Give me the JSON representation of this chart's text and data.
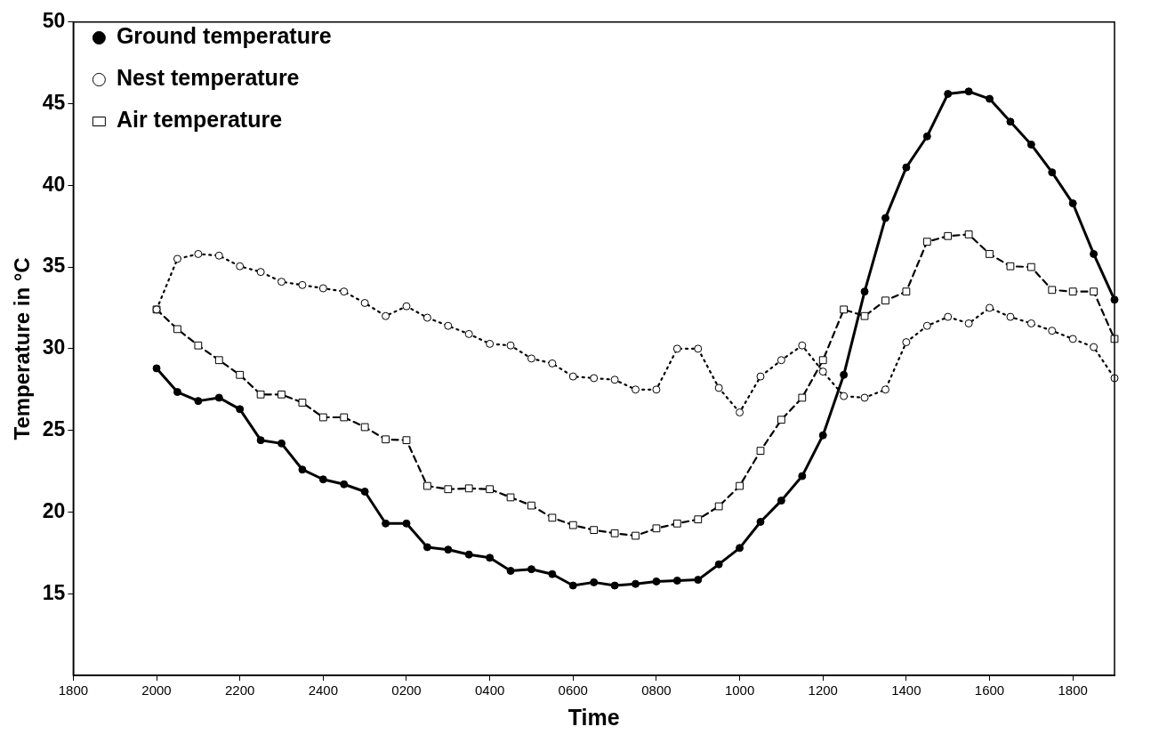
{
  "chart_data": {
    "type": "line",
    "xlabel": "Time",
    "ylabel": "Temperature in °C",
    "categories": [
      "1800",
      null,
      null,
      null,
      "2000",
      null,
      null,
      null,
      "2200",
      null,
      null,
      null,
      "2400",
      null,
      null,
      null,
      "0200",
      null,
      null,
      null,
      "0400",
      null,
      null,
      null,
      "0600",
      null,
      null,
      null,
      "0800",
      null,
      null,
      null,
      "1000",
      null,
      null,
      null,
      "1200",
      null,
      null,
      null,
      "1400",
      null,
      null,
      null,
      "1600",
      null,
      null,
      null,
      "1800",
      null,
      null
    ],
    "ylim": [
      10,
      50
    ],
    "yticks": [
      15,
      20,
      25,
      30,
      35,
      40,
      45,
      50
    ],
    "grid": false,
    "legend": "top left",
    "series": [
      {
        "name": "Ground temperature",
        "color": "#000000",
        "marker": "circle",
        "line_style": "solid",
        "values": [
          null,
          null,
          null,
          null,
          28.8,
          27.35,
          26.8,
          27.0,
          26.3,
          24.4,
          24.2,
          22.6,
          22.0,
          21.7,
          21.25,
          19.3,
          19.3,
          17.85,
          17.7,
          17.4,
          17.2,
          16.4,
          16.5,
          16.2,
          15.5,
          15.7,
          15.5,
          15.6,
          15.75,
          15.8,
          15.85,
          16.8,
          17.8,
          19.4,
          20.7,
          22.2,
          24.7,
          28.4,
          33.5,
          38.0,
          41.1,
          43.0,
          45.6,
          45.75,
          45.3,
          43.9,
          42.5,
          40.8,
          38.9,
          35.8,
          33.0
        ]
      },
      {
        "name": "Nest temperature",
        "color": "#000000",
        "marker": "circle",
        "line_style": "dotted",
        "values": [
          null,
          null,
          null,
          null,
          32.4,
          35.5,
          35.8,
          35.7,
          35.05,
          34.7,
          34.1,
          33.9,
          33.7,
          33.5,
          32.8,
          32.0,
          32.6,
          31.9,
          31.4,
          30.9,
          30.3,
          30.2,
          29.4,
          29.1,
          28.3,
          28.2,
          28.1,
          27.5,
          27.5,
          30.0,
          30.0,
          27.6,
          26.1,
          28.3,
          29.3,
          30.2,
          28.6,
          27.1,
          27.0,
          27.5,
          30.4,
          31.4,
          31.95,
          31.55,
          32.5,
          31.95,
          31.55,
          31.1,
          30.6,
          30.1,
          28.2
        ]
      },
      {
        "name": "Air temperature",
        "color": "#000000",
        "marker": "square",
        "line_style": "dashed",
        "values": [
          null,
          null,
          null,
          null,
          32.4,
          31.2,
          30.2,
          29.3,
          28.4,
          27.2,
          27.2,
          26.7,
          25.8,
          25.8,
          25.2,
          24.45,
          24.4,
          21.6,
          21.4,
          21.45,
          21.4,
          20.9,
          20.4,
          19.65,
          19.2,
          18.9,
          18.7,
          18.55,
          19.0,
          19.3,
          19.55,
          20.35,
          21.6,
          23.75,
          25.65,
          27.0,
          29.3,
          32.4,
          32.0,
          32.95,
          33.5,
          36.55,
          36.9,
          37.0,
          35.8,
          35.05,
          35.0,
          33.6,
          33.5,
          33.5,
          30.6
        ]
      }
    ]
  }
}
